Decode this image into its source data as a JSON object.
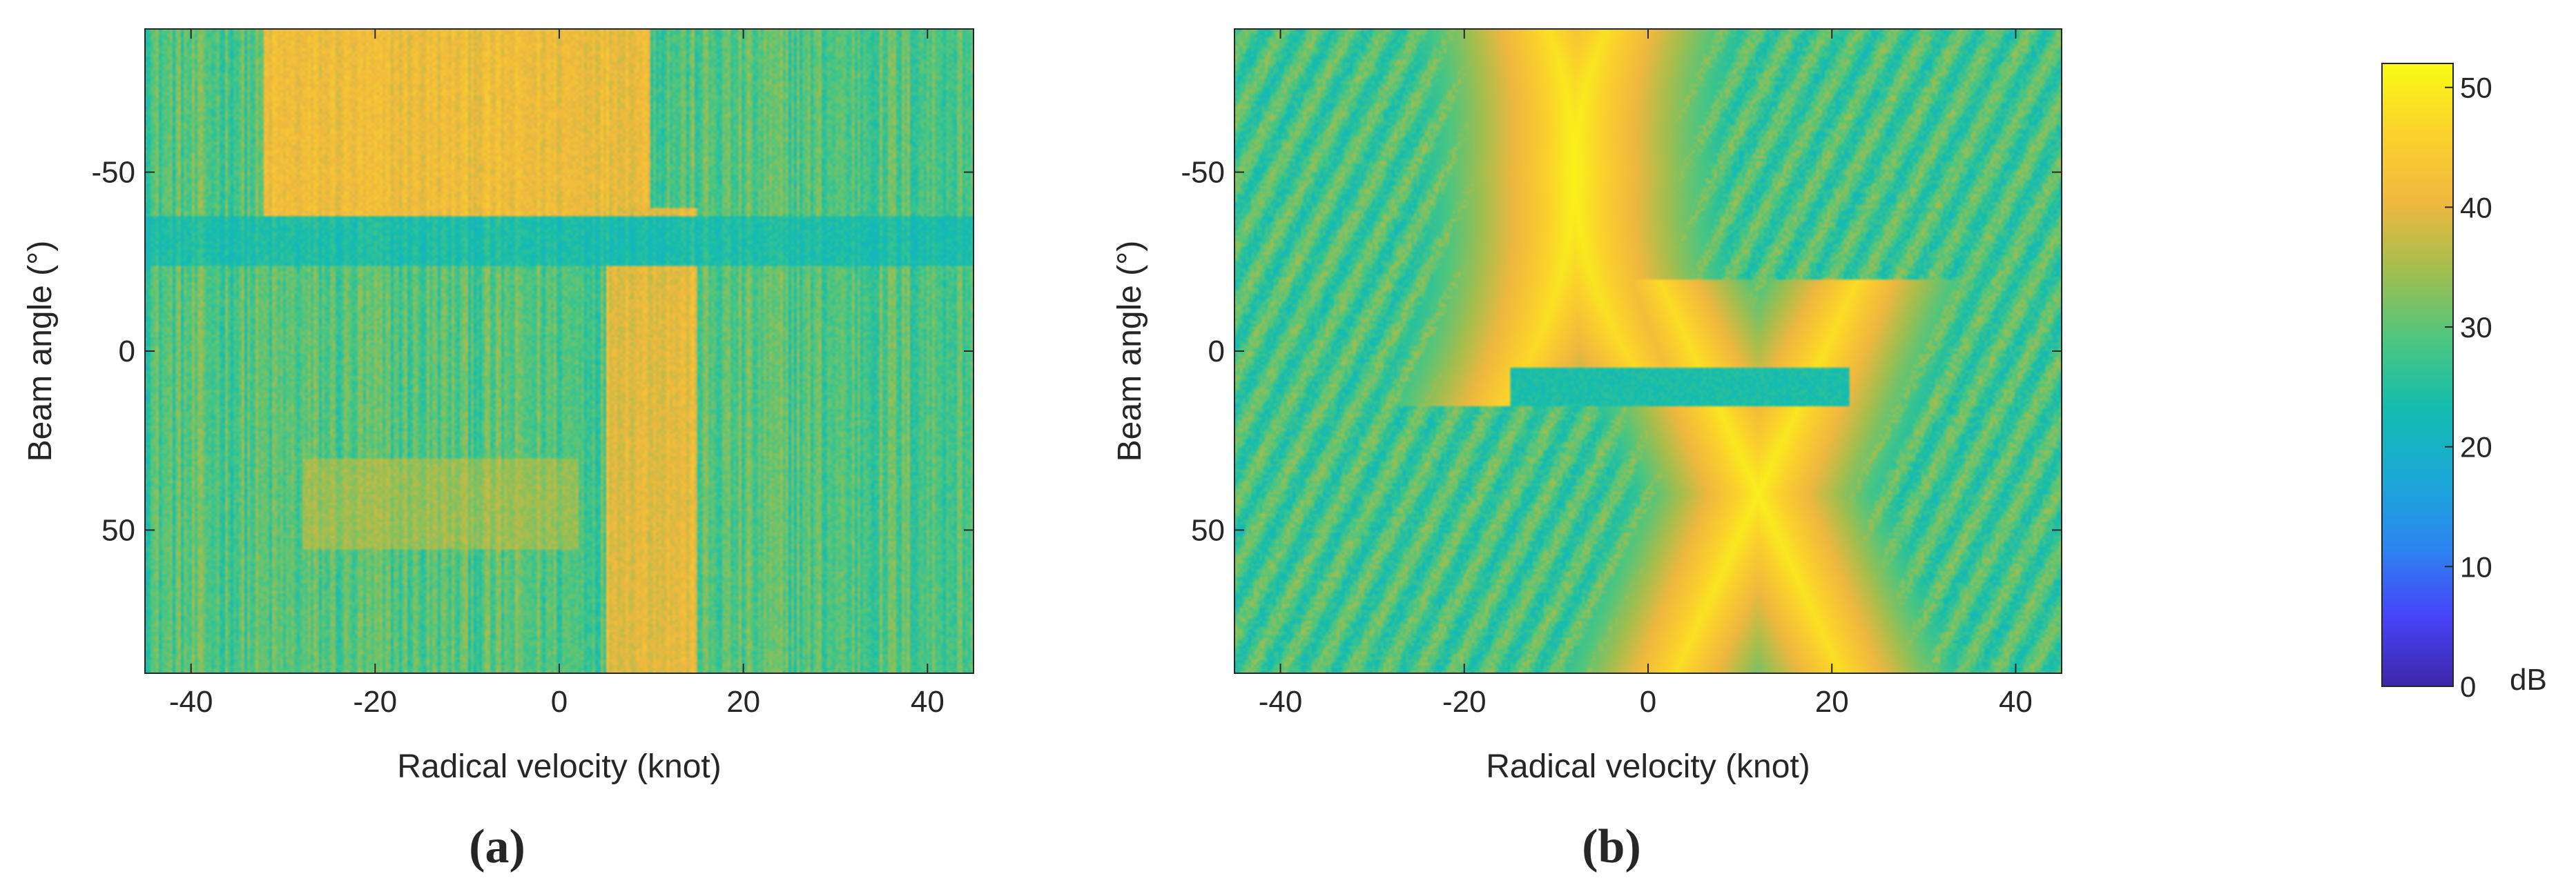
{
  "figure": {
    "colorbar": {
      "unit": "dB",
      "ticks": [
        0,
        10,
        20,
        30,
        40,
        50
      ],
      "range": [
        0,
        52
      ],
      "colormap": "parula",
      "colors": [
        "#3e26a8",
        "#4743f8",
        "#2c85f0",
        "#1ba9d7",
        "#13bcb0",
        "#4cc680",
        "#a2be4f",
        "#f0b83f",
        "#fbd22c",
        "#f9fb15"
      ]
    }
  },
  "chart_data": [
    {
      "type": "heatmap",
      "panel_label": "(a)",
      "title": "",
      "xlabel": "Radical velocity (knot)",
      "ylabel": "Beam angle (°)",
      "xlim": [
        -45,
        45
      ],
      "ylim": [
        -90,
        90
      ],
      "y_reversed": true,
      "xticks": [
        -40,
        -20,
        0,
        20,
        40
      ],
      "yticks": [
        -50,
        0,
        50
      ],
      "clim": [
        0,
        52
      ],
      "background_db": 29,
      "features": [
        {
          "kind": "band",
          "x_range": [
            -32,
            10
          ],
          "y_range": [
            -90,
            -33
          ],
          "db": 41
        },
        {
          "kind": "band",
          "x_range": [
            5,
            15
          ],
          "y_range": [
            -40,
            90
          ],
          "db": 40
        },
        {
          "kind": "band",
          "x_range": [
            -45,
            45
          ],
          "y_range": [
            -38,
            -24
          ],
          "db": 24
        },
        {
          "kind": "band",
          "x_range": [
            -28,
            2
          ],
          "y_range": [
            30,
            55
          ],
          "db": 34
        }
      ]
    },
    {
      "type": "heatmap",
      "panel_label": "(b)",
      "title": "",
      "xlabel": "Radical velocity (knot)",
      "ylabel": "Beam angle (°)",
      "xlim": [
        -45,
        45
      ],
      "ylim": [
        -90,
        90
      ],
      "y_reversed": true,
      "xticks": [
        -40,
        -20,
        0,
        20,
        40
      ],
      "yticks": [
        -50,
        0,
        50
      ],
      "clim": [
        0,
        52
      ],
      "background_db": 28,
      "features": [
        {
          "kind": "ridge",
          "vertex": [
            -8,
            -50
          ],
          "y_range": [
            -90,
            15
          ],
          "db": 51
        },
        {
          "kind": "x-pattern",
          "center": [
            12,
            40
          ],
          "y_range": [
            -20,
            90
          ],
          "db": 50
        },
        {
          "kind": "band",
          "x_range": [
            -15,
            22
          ],
          "y_range": [
            5,
            15
          ],
          "db": 24
        }
      ]
    }
  ]
}
